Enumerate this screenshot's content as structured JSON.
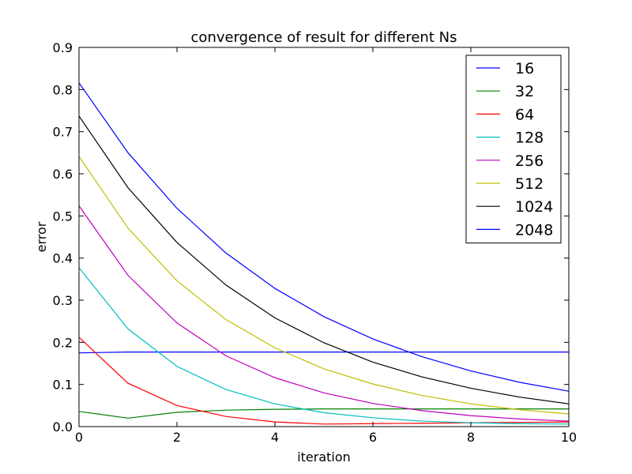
{
  "chart_data": {
    "type": "line",
    "title": "convergence of result for different Ns",
    "xlabel": "iteration",
    "ylabel": "error",
    "xlim": [
      0,
      10
    ],
    "ylim": [
      0,
      0.9
    ],
    "xticks": [
      0,
      2,
      4,
      6,
      8,
      10
    ],
    "yticks": [
      0.0,
      0.1,
      0.2,
      0.3,
      0.4,
      0.5,
      0.6,
      0.7,
      0.8,
      0.9
    ],
    "xtick_labels": [
      "0",
      "2",
      "4",
      "6",
      "8",
      "10"
    ],
    "ytick_labels": [
      "0.0",
      "0.1",
      "0.2",
      "0.3",
      "0.4",
      "0.5",
      "0.6",
      "0.7",
      "0.8",
      "0.9"
    ],
    "grid": false,
    "legend_position": "top-right",
    "x": [
      0,
      1,
      2,
      3,
      4,
      5,
      6,
      7,
      8,
      9,
      10
    ],
    "series": [
      {
        "name": "16",
        "color": "#0000ff",
        "values": [
          0.175,
          0.177,
          0.177,
          0.177,
          0.177,
          0.177,
          0.177,
          0.177,
          0.177,
          0.177,
          0.177
        ]
      },
      {
        "name": "32",
        "color": "#008000",
        "values": [
          0.036,
          0.02,
          0.034,
          0.039,
          0.041,
          0.042,
          0.042,
          0.042,
          0.042,
          0.042,
          0.042
        ]
      },
      {
        "name": "64",
        "color": "#ff0000",
        "values": [
          0.212,
          0.103,
          0.05,
          0.024,
          0.011,
          0.006,
          0.007,
          0.008,
          0.009,
          0.01,
          0.011
        ]
      },
      {
        "name": "128",
        "color": "#00bfbf",
        "values": [
          0.377,
          0.232,
          0.143,
          0.088,
          0.054,
          0.033,
          0.021,
          0.013,
          0.009,
          0.007,
          0.006
        ]
      },
      {
        "name": "256",
        "color": "#bf00bf",
        "values": [
          0.524,
          0.359,
          0.246,
          0.168,
          0.116,
          0.08,
          0.055,
          0.038,
          0.026,
          0.018,
          0.013
        ]
      },
      {
        "name": "512",
        "color": "#bfbf00",
        "values": [
          0.641,
          0.471,
          0.346,
          0.254,
          0.187,
          0.137,
          0.101,
          0.074,
          0.054,
          0.04,
          0.03
        ]
      },
      {
        "name": "1024",
        "color": "#000000",
        "values": [
          0.737,
          0.567,
          0.437,
          0.336,
          0.258,
          0.199,
          0.153,
          0.118,
          0.091,
          0.07,
          0.054
        ]
      },
      {
        "name": "2048",
        "color": "#0000ff",
        "values": [
          0.816,
          0.65,
          0.518,
          0.412,
          0.328,
          0.261,
          0.208,
          0.166,
          0.132,
          0.105,
          0.084
        ]
      }
    ]
  }
}
